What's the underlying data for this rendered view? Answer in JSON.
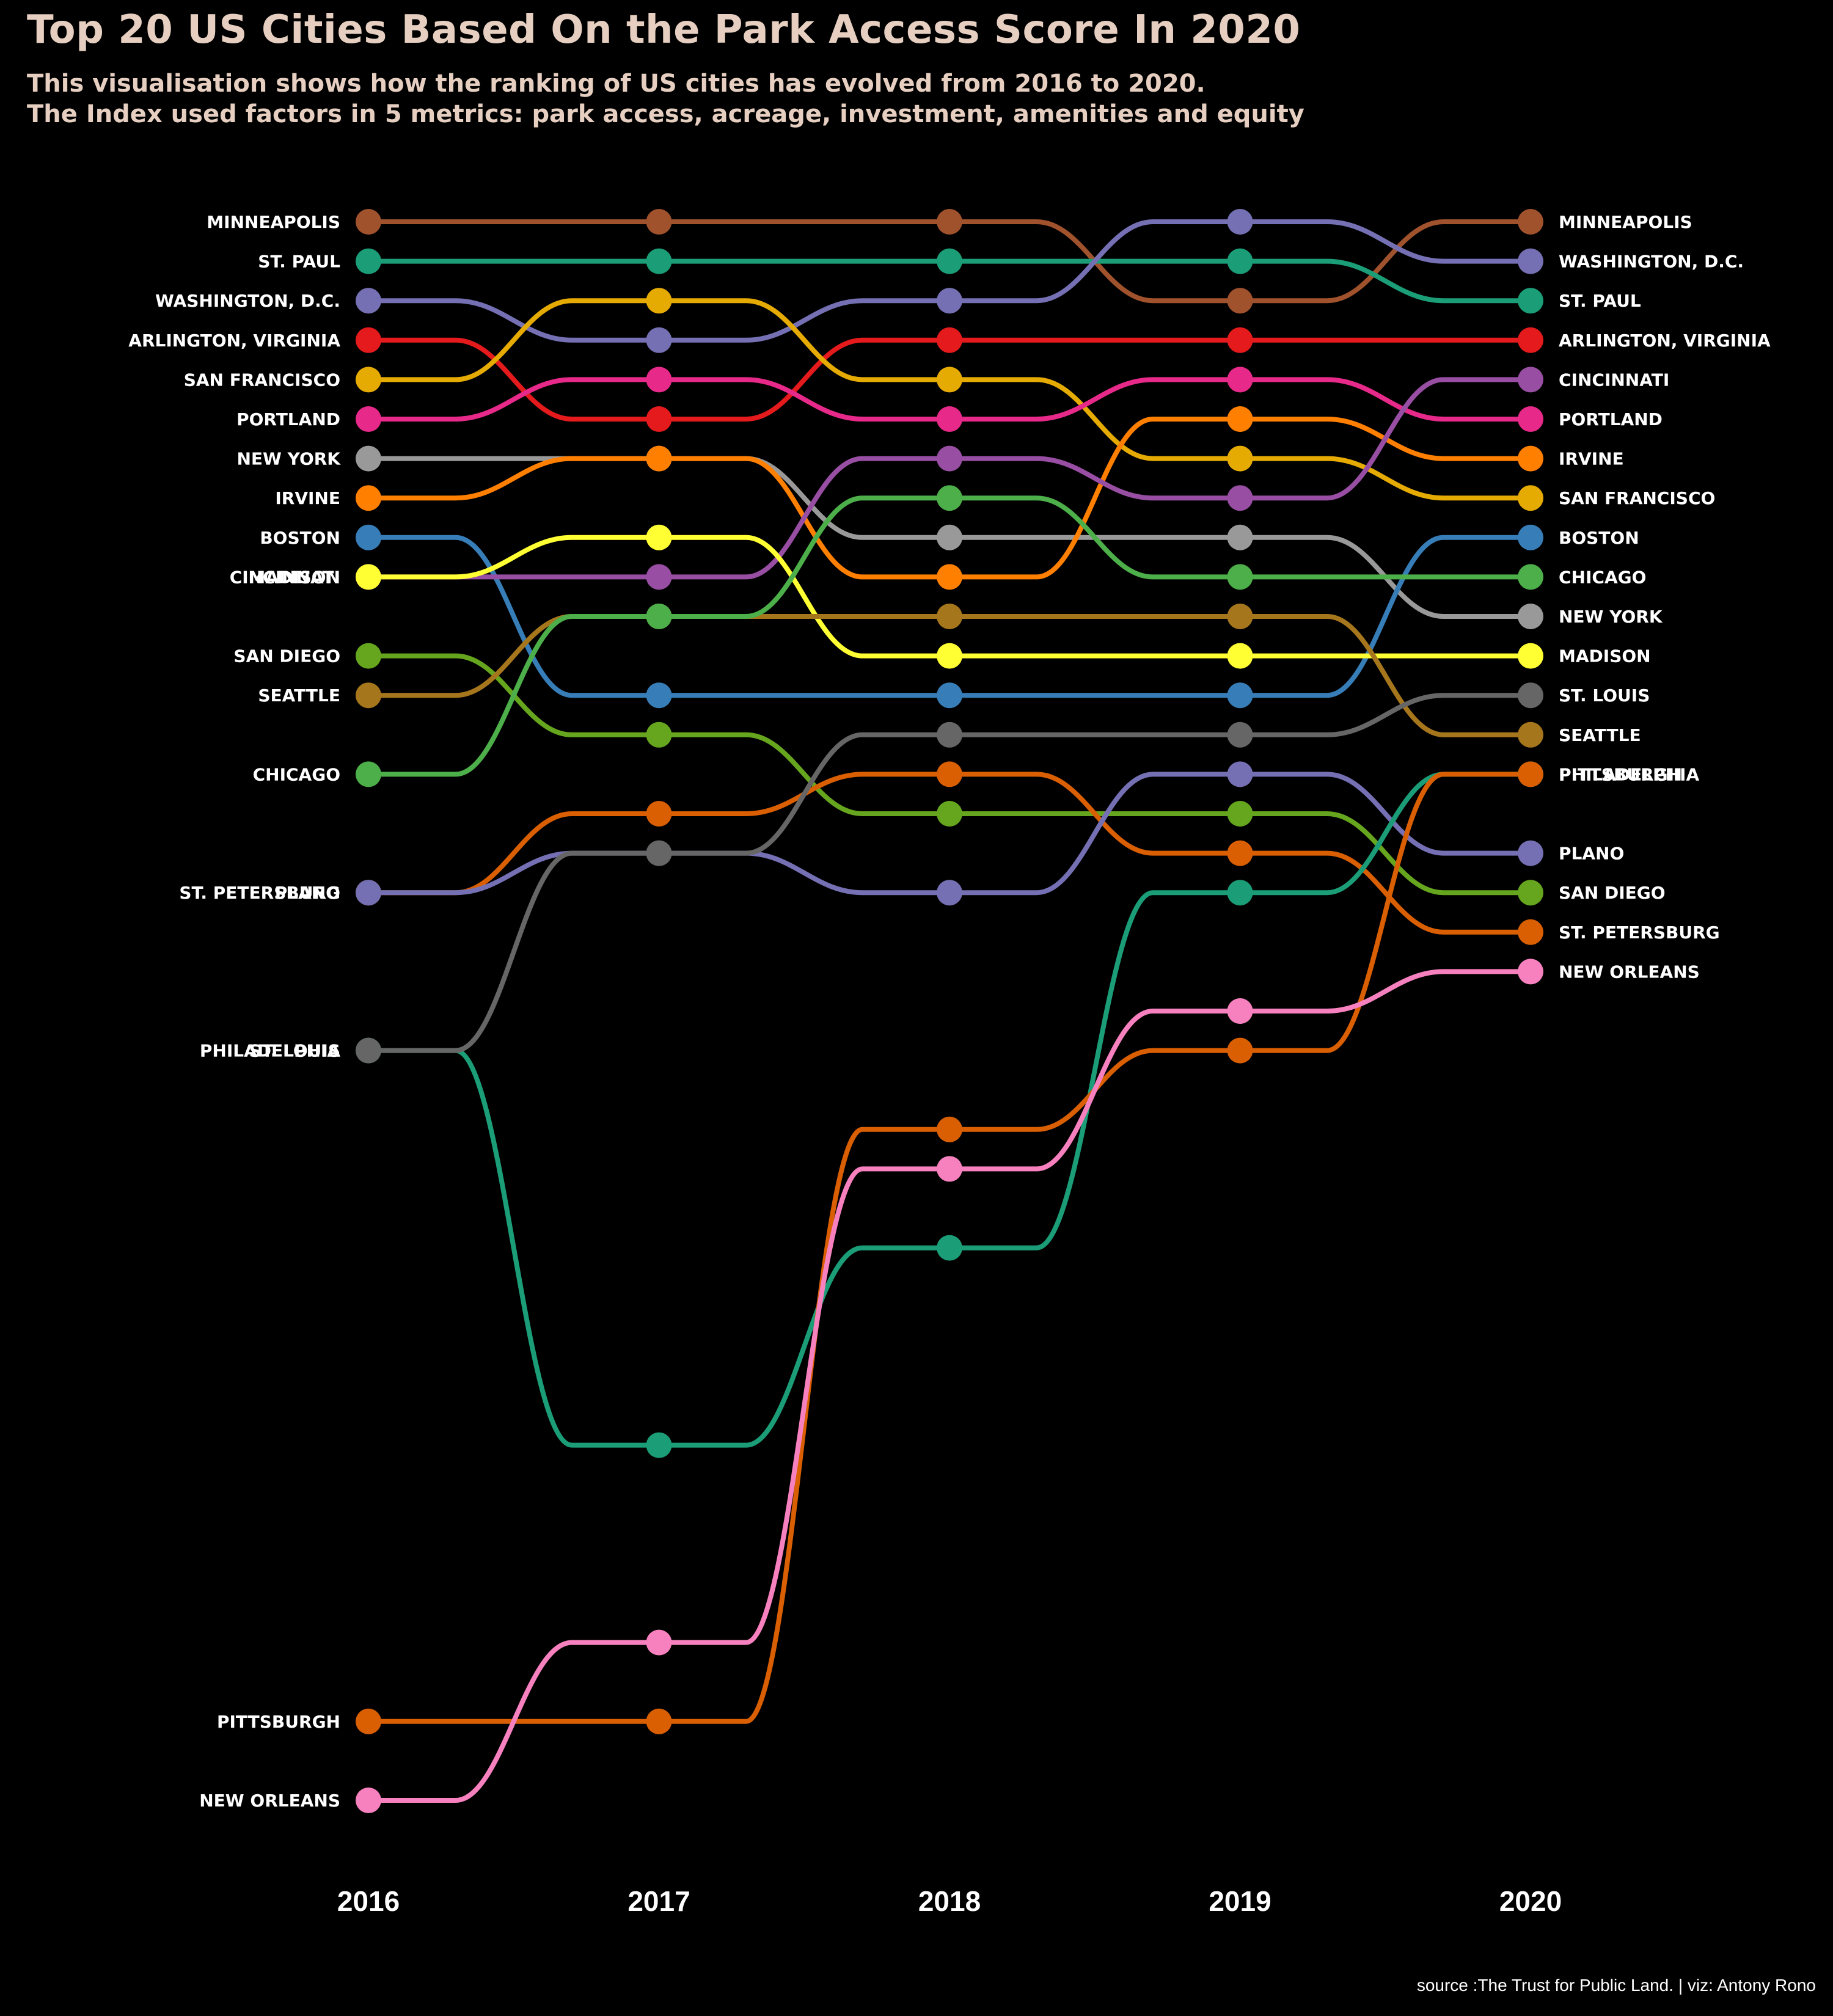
{
  "title": "Top 20 US Cities Based On the Park Access Score In 2020",
  "subtitle_lines": [
    "This visualisation shows how the ranking of US cities has evolved from 2016 to 2020.",
    "The Index used factors in 5 metrics: park access, acreage, investment, amenities and equity"
  ],
  "caption": "source :The Trust for Public Land. | viz: Antony Rono",
  "chart_data": {
    "type": "line",
    "chart_kind": "bump chart (rank over time)",
    "x": [
      2016,
      2017,
      2018,
      2019,
      2020
    ],
    "y_axis": "rank",
    "y_reversed": true,
    "ylim": [
      1,
      42
    ],
    "grid": false,
    "legend": "none (series labelled at left and right ends)",
    "background": "#000000",
    "series": [
      {
        "name": "MINNEAPOLIS",
        "color": "#a0522d",
        "ranks": [
          1,
          1,
          1,
          3,
          1
        ]
      },
      {
        "name": "ST. PAUL",
        "color": "#1b9e77",
        "ranks": [
          2,
          2,
          2,
          2,
          3
        ]
      },
      {
        "name": "WASHINGTON, D.C.",
        "color": "#7570b3",
        "ranks": [
          3,
          4,
          3,
          1,
          2
        ]
      },
      {
        "name": "ARLINGTON, VIRGINIA",
        "color": "#e41a1c",
        "ranks": [
          4,
          6,
          4,
          4,
          4
        ]
      },
      {
        "name": "SAN FRANCISCO",
        "color": "#e6ab02",
        "ranks": [
          5,
          3,
          5,
          7,
          8
        ]
      },
      {
        "name": "PORTLAND",
        "color": "#e7298a",
        "ranks": [
          6,
          5,
          6,
          5,
          6
        ]
      },
      {
        "name": "NEW YORK",
        "color": "#999999",
        "ranks": [
          7,
          7,
          9,
          9,
          11
        ]
      },
      {
        "name": "IRVINE",
        "color": "#ff7f00",
        "ranks": [
          8,
          7,
          10,
          6,
          7
        ]
      },
      {
        "name": "BOSTON",
        "color": "#377eb8",
        "ranks": [
          9,
          13,
          13,
          13,
          9
        ]
      },
      {
        "name": "CINCINNATI",
        "color": "#984ea3",
        "ranks": [
          10,
          10,
          7,
          8,
          5
        ]
      },
      {
        "name": "MADISON",
        "color": "#ffff33",
        "ranks": [
          10,
          9,
          12,
          12,
          12
        ]
      },
      {
        "name": "SAN DIEGO",
        "color": "#66a61e",
        "ranks": [
          12,
          14,
          16,
          16,
          18
        ]
      },
      {
        "name": "SEATTLE",
        "color": "#a6761d",
        "ranks": [
          13,
          11,
          11,
          11,
          14
        ]
      },
      {
        "name": "CHICAGO",
        "color": "#4daf4a",
        "ranks": [
          15,
          11,
          8,
          10,
          10
        ]
      },
      {
        "name": "ST. PETERSBURG",
        "color": "#d95f02",
        "ranks": [
          18,
          16,
          15,
          17,
          19
        ]
      },
      {
        "name": "PLANO",
        "color": "#7570b3",
        "ranks": [
          18,
          17,
          18,
          15,
          17
        ]
      },
      {
        "name": "PHILADELPHIA",
        "color": "#1b9e77",
        "ranks": [
          22,
          32,
          27,
          18,
          15
        ]
      },
      {
        "name": "ST. LOUIS",
        "color": "#666666",
        "ranks": [
          22,
          17,
          14,
          14,
          13
        ]
      },
      {
        "name": "PITTSBURGH",
        "color": "#d95f02",
        "ranks": [
          39,
          39,
          24,
          22,
          15
        ]
      },
      {
        "name": "NEW ORLEANS",
        "color": "#f781bf",
        "ranks": [
          41,
          37,
          25,
          21,
          20
        ]
      }
    ]
  }
}
